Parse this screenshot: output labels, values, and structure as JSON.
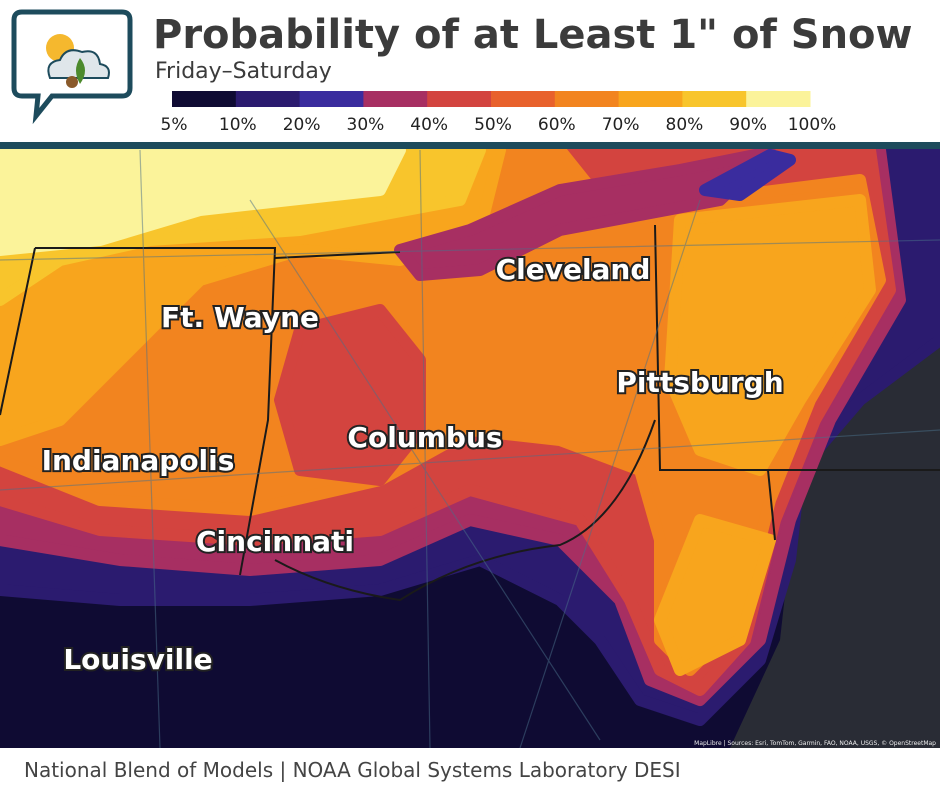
{
  "header": {
    "title": "Probability of at Least 1\" of Snow",
    "subtitle": "Friday–Saturday"
  },
  "legend": {
    "colors": [
      "#0f0b33",
      "#2b1b6f",
      "#3a2c9e",
      "#a72f62",
      "#d3443f",
      "#e8612c",
      "#f2841f",
      "#f8a51d",
      "#f8c52c",
      "#fbf39a"
    ],
    "labels": [
      "5%",
      "10%",
      "20%",
      "30%",
      "40%",
      "50%",
      "60%",
      "70%",
      "80%",
      "90%",
      "100%"
    ]
  },
  "cities": [
    {
      "label": "Cleveland"
    },
    {
      "label": "Ft. Wayne"
    },
    {
      "label": "Pittsburgh"
    },
    {
      "label": "Columbus"
    },
    {
      "label": "Indianapolis"
    },
    {
      "label": "Cincinnati"
    },
    {
      "label": "Louisville"
    }
  ],
  "attribution": "MapLibre | Sources: Esri, TomTom, Garmin, FAO, NOAA, USGS, © OpenStreetMap",
  "footer": "National Blend of Models | NOAA Global Systems Laboratory DESI"
}
